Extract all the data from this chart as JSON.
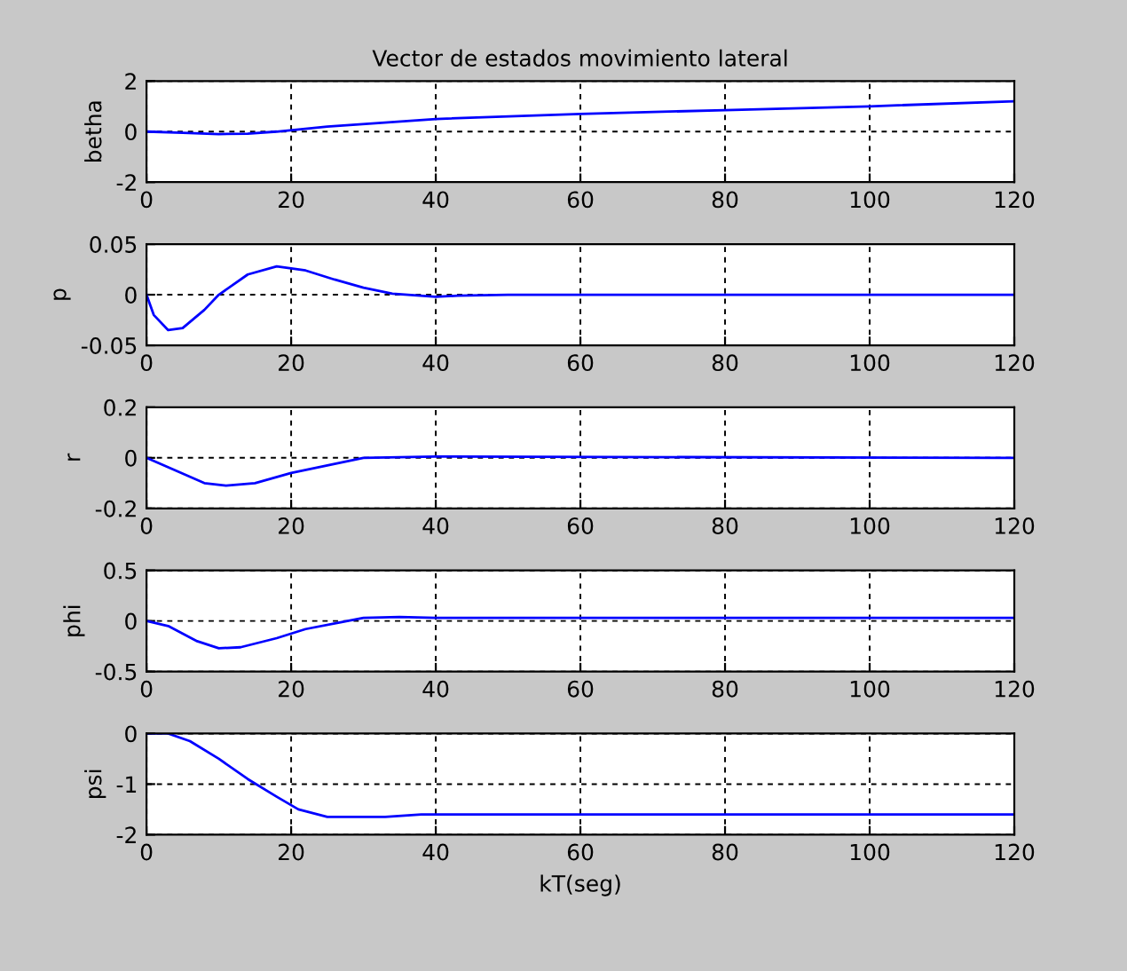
{
  "chart_data": [
    {
      "type": "line",
      "title": "Vector de estados movimiento lateral",
      "ylabel": "betha",
      "xlim": [
        0,
        120
      ],
      "xticks": [
        0,
        20,
        40,
        60,
        80,
        100,
        120
      ],
      "ylim": [
        -2,
        2
      ],
      "yticks": [
        -2,
        0,
        2
      ],
      "grid": true,
      "series": [
        {
          "color": "#0000ff",
          "x": [
            0,
            5,
            10,
            14,
            18,
            25,
            40,
            60,
            80,
            100,
            120
          ],
          "values": [
            0,
            -0.05,
            -0.1,
            -0.08,
            0,
            0.2,
            0.5,
            0.7,
            0.85,
            1.0,
            1.2
          ]
        }
      ]
    },
    {
      "type": "line",
      "ylabel": "p",
      "xlim": [
        0,
        120
      ],
      "xticks": [
        0,
        20,
        40,
        60,
        80,
        100,
        120
      ],
      "ylim": [
        -0.05,
        0.05
      ],
      "yticks": [
        -0.05,
        0,
        0.05
      ],
      "grid": true,
      "series": [
        {
          "color": "#0000ff",
          "x": [
            0,
            1,
            3,
            5,
            8,
            10,
            14,
            18,
            22,
            26,
            30,
            34,
            40,
            43,
            50,
            120
          ],
          "values": [
            0,
            -0.02,
            -0.035,
            -0.033,
            -0.015,
            0,
            0.02,
            0.028,
            0.024,
            0.015,
            0.007,
            0.001,
            -0.002,
            -0.001,
            0,
            0
          ]
        }
      ]
    },
    {
      "type": "line",
      "ylabel": "r",
      "xlim": [
        0,
        120
      ],
      "xticks": [
        0,
        20,
        40,
        60,
        80,
        100,
        120
      ],
      "ylim": [
        -0.2,
        0.2
      ],
      "yticks": [
        -0.2,
        0,
        0.2
      ],
      "grid": true,
      "series": [
        {
          "color": "#0000ff",
          "x": [
            0,
            4,
            8,
            11,
            15,
            20,
            25,
            30,
            40,
            120
          ],
          "values": [
            0,
            -0.05,
            -0.1,
            -0.11,
            -0.1,
            -0.06,
            -0.03,
            0,
            0.005,
            0
          ]
        }
      ]
    },
    {
      "type": "line",
      "ylabel": "phi",
      "xlim": [
        0,
        120
      ],
      "xticks": [
        0,
        20,
        40,
        60,
        80,
        100,
        120
      ],
      "ylim": [
        -0.5,
        0.5
      ],
      "yticks": [
        -0.5,
        0,
        0.5
      ],
      "grid": true,
      "series": [
        {
          "color": "#0000ff",
          "x": [
            0,
            3,
            7,
            10,
            13,
            18,
            22,
            27,
            30,
            35,
            40,
            120
          ],
          "values": [
            0,
            -0.05,
            -0.2,
            -0.27,
            -0.26,
            -0.17,
            -0.08,
            -0.01,
            0.03,
            0.04,
            0.03,
            0.03
          ]
        }
      ]
    },
    {
      "type": "line",
      "ylabel": "psi",
      "xlabel": "kT(seg)",
      "xlim": [
        0,
        120
      ],
      "xticks": [
        0,
        20,
        40,
        60,
        80,
        100,
        120
      ],
      "ylim": [
        -2,
        0
      ],
      "yticks": [
        -2,
        -1,
        0
      ],
      "grid": true,
      "series": [
        {
          "color": "#0000ff",
          "x": [
            0,
            3,
            6,
            10,
            14,
            18,
            21,
            25,
            33,
            38,
            120
          ],
          "values": [
            0,
            0,
            -0.15,
            -0.5,
            -0.9,
            -1.25,
            -1.5,
            -1.65,
            -1.65,
            -1.6,
            -1.6
          ]
        }
      ]
    }
  ]
}
